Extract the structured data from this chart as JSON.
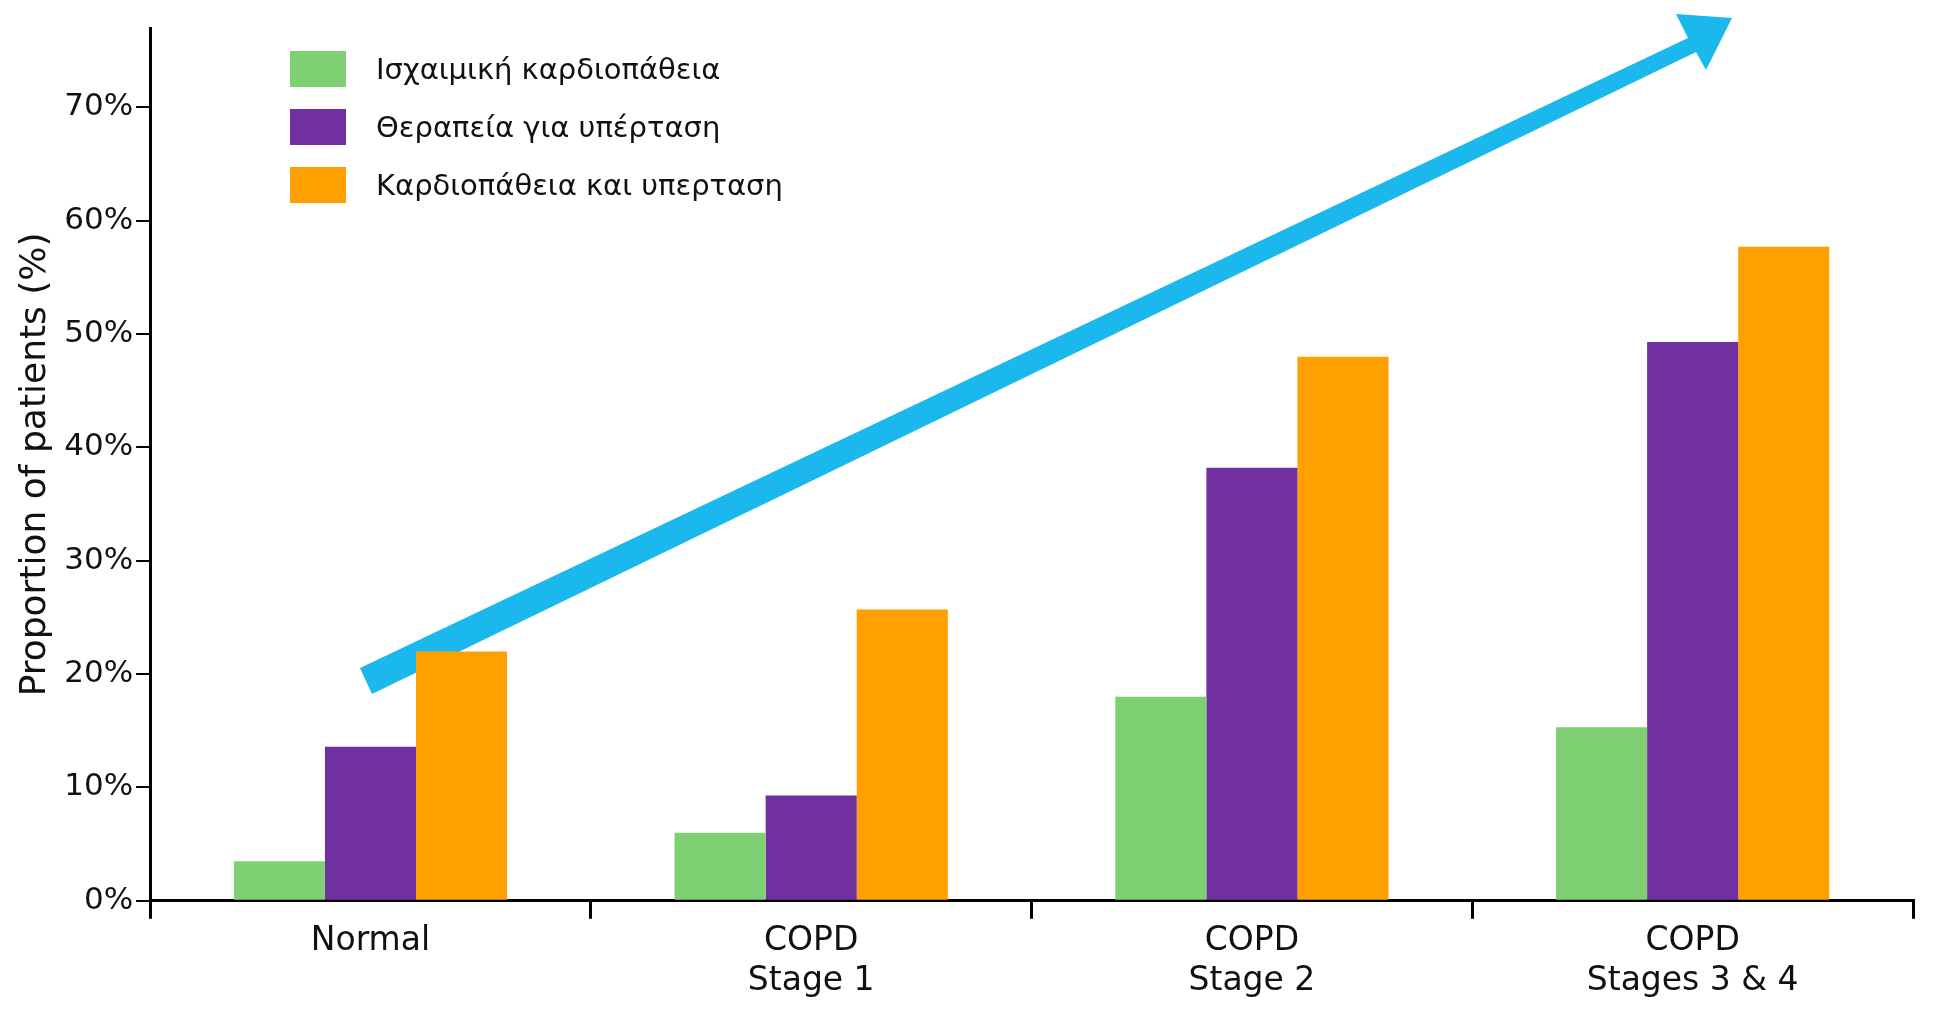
{
  "chart_data": {
    "type": "bar",
    "ylabel": "Proportion of patients (%)",
    "categories": [
      "Normal",
      "COPD\nStage 1",
      "COPD\nStage 2",
      "COPD\nStages 3 & 4"
    ],
    "series": [
      {
        "name": "Ισχαιμική καρδιοπάθεια",
        "color": "#7fd072",
        "values": [
          3.5,
          6,
          18,
          15.3
        ]
      },
      {
        "name": "Θεραπεία για υπέρταση",
        "color": "#7030a0",
        "values": [
          13.6,
          9.3,
          38.2,
          49.3
        ]
      },
      {
        "name": "Καρδιοπάθεια και υπερταση",
        "color": "#ffa000",
        "values": [
          22,
          25.7,
          48,
          57.7
        ]
      }
    ],
    "ylim": [
      0,
      77
    ],
    "yticks": [
      {
        "value": 0,
        "label": "0%"
      },
      {
        "value": 10,
        "label": "10%"
      },
      {
        "value": 20,
        "label": "20%"
      },
      {
        "value": 30,
        "label": "30%"
      },
      {
        "value": 40,
        "label": "40%"
      },
      {
        "value": 50,
        "label": "50%"
      },
      {
        "value": 60,
        "label": "60%"
      },
      {
        "value": 70,
        "label": "70%"
      }
    ],
    "grid": false,
    "legend": "top left"
  }
}
